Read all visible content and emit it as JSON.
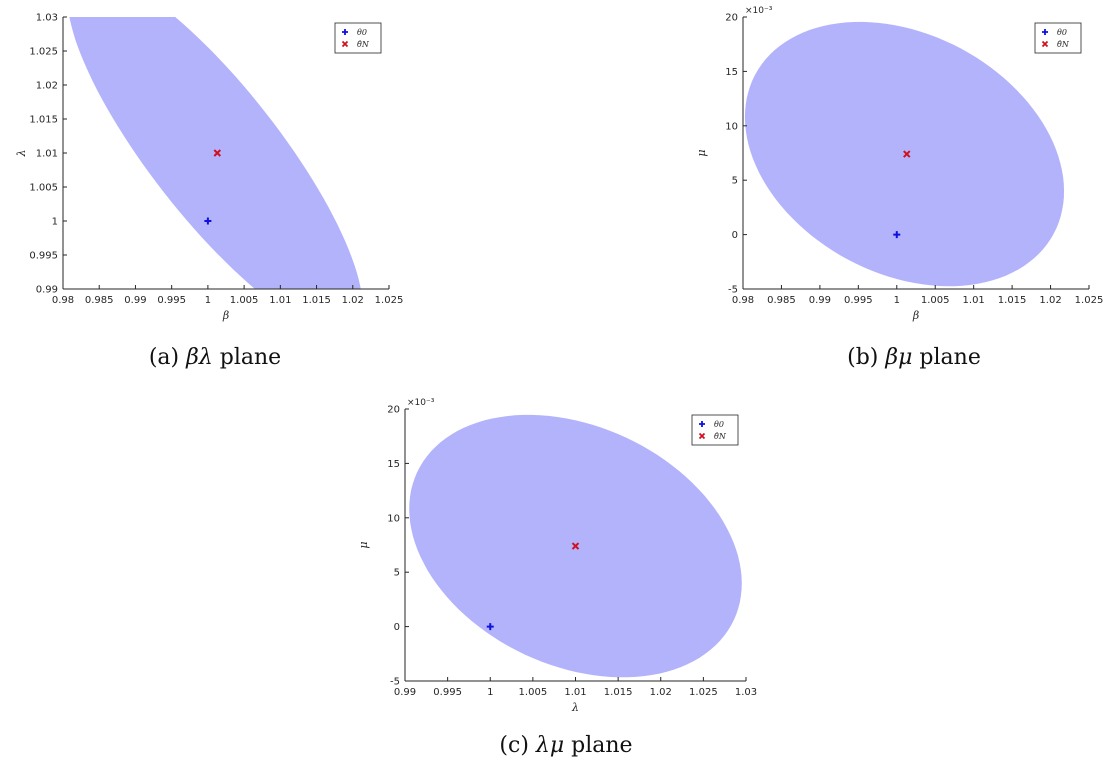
{
  "chart_data": [
    {
      "type": "scatter",
      "caption_label": "(a)",
      "caption_math": "βλ",
      "caption_text": "plane",
      "xlabel": "β",
      "ylabel": "λ",
      "xlim": [
        0.98,
        1.025
      ],
      "ylim": [
        0.99,
        1.03
      ],
      "xticks": [
        "0.98",
        "0.985",
        "0.99",
        "0.995",
        "1",
        "1.005",
        "1.01",
        "1.015",
        "1.02",
        "1.025"
      ],
      "yticks": [
        "0.99",
        "0.995",
        "1",
        "1.005",
        "1.01",
        "1.015",
        "1.02",
        "1.025",
        "1.03"
      ],
      "y_exponent": "",
      "legend_position": "top-right",
      "region": {
        "center": [
          1.001,
          1.01
        ],
        "semi_major": 0.031,
        "semi_minor": 0.0095,
        "angle_deg": -52,
        "color": "#b3b3fb"
      },
      "series": [
        {
          "name": "θ0",
          "marker": "plus",
          "color": "#1010e0",
          "points": [
            [
              1.0,
              1.0
            ]
          ]
        },
        {
          "name": "θ̂N",
          "marker": "x",
          "color": "#d01020",
          "points": [
            [
              1.0013,
              1.01
            ]
          ]
        }
      ]
    },
    {
      "type": "scatter",
      "caption_label": "(b)",
      "caption_math": "βμ",
      "caption_text": "plane",
      "xlabel": "β",
      "ylabel": "μ",
      "xlim": [
        0.98,
        1.025
      ],
      "ylim": [
        -5,
        20
      ],
      "xticks": [
        "0.98",
        "0.985",
        "0.99",
        "0.995",
        "1",
        "1.005",
        "1.01",
        "1.015",
        "1.02",
        "1.025"
      ],
      "yticks": [
        "-5",
        "0",
        "5",
        "10",
        "15",
        "20"
      ],
      "y_exponent": "×10⁻³",
      "legend_position": "top-right",
      "region": {
        "center": [
          1.001,
          7.4
        ],
        "semi_major": 0.022,
        "semi_minor": 11.0,
        "angle_deg": -28,
        "color": "#b3b3fb"
      },
      "series": [
        {
          "name": "θ0",
          "marker": "plus",
          "color": "#1010e0",
          "points": [
            [
              1.0,
              0.0
            ]
          ]
        },
        {
          "name": "θ̂N",
          "marker": "x",
          "color": "#d01020",
          "points": [
            [
              1.0013,
              7.4
            ]
          ]
        }
      ]
    },
    {
      "type": "scatter",
      "caption_label": "(c)",
      "caption_math": "λμ",
      "caption_text": "plane",
      "xlabel": "λ",
      "ylabel": "μ",
      "xlim": [
        0.99,
        1.03
      ],
      "ylim": [
        -5,
        20
      ],
      "xticks": [
        "0.99",
        "0.995",
        "1",
        "1.005",
        "1.01",
        "1.015",
        "1.02",
        "1.025",
        "1.03"
      ],
      "yticks": [
        "-5",
        "0",
        "5",
        "10",
        "15",
        "20"
      ],
      "y_exponent": "×10⁻³",
      "legend_position": "top-right",
      "region": {
        "center": [
          1.01,
          7.4
        ],
        "semi_major": 0.0205,
        "semi_minor": 11.0,
        "angle_deg": -25,
        "color": "#b3b3fb"
      },
      "series": [
        {
          "name": "θ0",
          "marker": "plus",
          "color": "#1010e0",
          "points": [
            [
              1.0,
              0.0
            ]
          ]
        },
        {
          "name": "θ̂N",
          "marker": "x",
          "color": "#d01020",
          "points": [
            [
              1.01,
              7.4
            ]
          ]
        }
      ]
    }
  ]
}
